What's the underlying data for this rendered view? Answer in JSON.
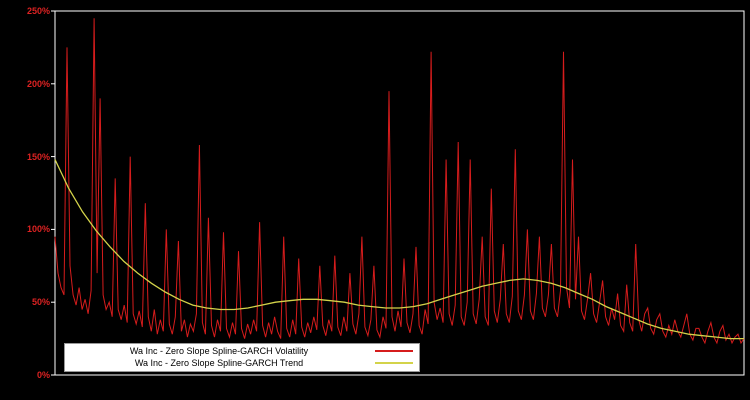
{
  "colors": {
    "background": "#000000",
    "plot_border": "#ffffff",
    "volatility": "#d61c1c",
    "trend": "#d3d34a",
    "axis_label": "#dd2222",
    "legend_bg": "#ffffff",
    "legend_text": "#000000"
  },
  "axis": {
    "y_tick_labels": [
      "0%",
      "50%",
      "100%",
      "150%",
      "200%",
      "250%"
    ]
  },
  "chart_data": {
    "type": "line",
    "title": "",
    "xlabel": "",
    "ylabel": "",
    "y_unit": "%",
    "ylim": [
      0,
      250
    ],
    "grid": false,
    "legend_position": "bottom-inside",
    "series": [
      {
        "name": "Wa Inc - Zero Slope Spline-GARCH Volatility",
        "color": "#d61c1c",
        "values": [
          95,
          70,
          60,
          55,
          225,
          75,
          55,
          48,
          60,
          45,
          52,
          42,
          58,
          245,
          70,
          190,
          55,
          45,
          50,
          40,
          135,
          45,
          38,
          48,
          36,
          150,
          42,
          35,
          44,
          33,
          118,
          40,
          30,
          45,
          28,
          38,
          30,
          100,
          35,
          28,
          40,
          92,
          30,
          38,
          26,
          35,
          30,
          42,
          158,
          36,
          28,
          108,
          34,
          26,
          38,
          30,
          98,
          32,
          26,
          36,
          28,
          85,
          32,
          25,
          35,
          28,
          38,
          30,
          105,
          34,
          26,
          36,
          28,
          40,
          30,
          25,
          95,
          32,
          26,
          38,
          28,
          80,
          33,
          26,
          36,
          29,
          40,
          31,
          75,
          34,
          27,
          38,
          30,
          82,
          33,
          27,
          40,
          30,
          70,
          35,
          28,
          42,
          95,
          33,
          27,
          38,
          75,
          31,
          26,
          40,
          32,
          195,
          40,
          30,
          44,
          33,
          80,
          36,
          29,
          42,
          88,
          34,
          28,
          45,
          35,
          222,
          50,
          38,
          46,
          36,
          148,
          42,
          34,
          48,
          160,
          40,
          34,
          50,
          148,
          42,
          35,
          52,
          95,
          40,
          34,
          128,
          44,
          36,
          52,
          90,
          42,
          36,
          54,
          155,
          44,
          38,
          55,
          100,
          44,
          38,
          56,
          95,
          46,
          40,
          55,
          90,
          46,
          40,
          58,
          222,
          60,
          46,
          148,
          52,
          95,
          44,
          38,
          52,
          70,
          42,
          36,
          50,
          65,
          40,
          34,
          46,
          38,
          56,
          34,
          30,
          62,
          36,
          30,
          90,
          38,
          30,
          42,
          46,
          32,
          28,
          38,
          42,
          30,
          26,
          34,
          28,
          38,
          30,
          26,
          34,
          42,
          28,
          24,
          32,
          32,
          26,
          22,
          30,
          36,
          26,
          22,
          30,
          34,
          24,
          28,
          22,
          26,
          28,
          22,
          25
        ]
      },
      {
        "name": "Wa Inc - Zero Slope Spline-GARCH Trend",
        "color": "#d3d34a",
        "points": [
          [
            0,
            148
          ],
          [
            0.02,
            128
          ],
          [
            0.04,
            112
          ],
          [
            0.06,
            99
          ],
          [
            0.08,
            88
          ],
          [
            0.1,
            78
          ],
          [
            0.12,
            70
          ],
          [
            0.14,
            63
          ],
          [
            0.16,
            57
          ],
          [
            0.18,
            52
          ],
          [
            0.2,
            48
          ],
          [
            0.22,
            46
          ],
          [
            0.24,
            45
          ],
          [
            0.26,
            45
          ],
          [
            0.28,
            46
          ],
          [
            0.3,
            48
          ],
          [
            0.32,
            50
          ],
          [
            0.34,
            51
          ],
          [
            0.36,
            52
          ],
          [
            0.38,
            52
          ],
          [
            0.4,
            51
          ],
          [
            0.42,
            50
          ],
          [
            0.44,
            48
          ],
          [
            0.46,
            47
          ],
          [
            0.48,
            46
          ],
          [
            0.5,
            46
          ],
          [
            0.52,
            47
          ],
          [
            0.54,
            49
          ],
          [
            0.56,
            52
          ],
          [
            0.58,
            55
          ],
          [
            0.6,
            58
          ],
          [
            0.62,
            61
          ],
          [
            0.64,
            63
          ],
          [
            0.66,
            65
          ],
          [
            0.68,
            66
          ],
          [
            0.7,
            65
          ],
          [
            0.72,
            63
          ],
          [
            0.74,
            60
          ],
          [
            0.76,
            56
          ],
          [
            0.78,
            52
          ],
          [
            0.8,
            47
          ],
          [
            0.82,
            43
          ],
          [
            0.84,
            39
          ],
          [
            0.86,
            35
          ],
          [
            0.88,
            32
          ],
          [
            0.9,
            30
          ],
          [
            0.92,
            28
          ],
          [
            0.94,
            27
          ],
          [
            0.96,
            26
          ],
          [
            0.98,
            25
          ],
          [
            1.0,
            25
          ]
        ]
      }
    ]
  }
}
